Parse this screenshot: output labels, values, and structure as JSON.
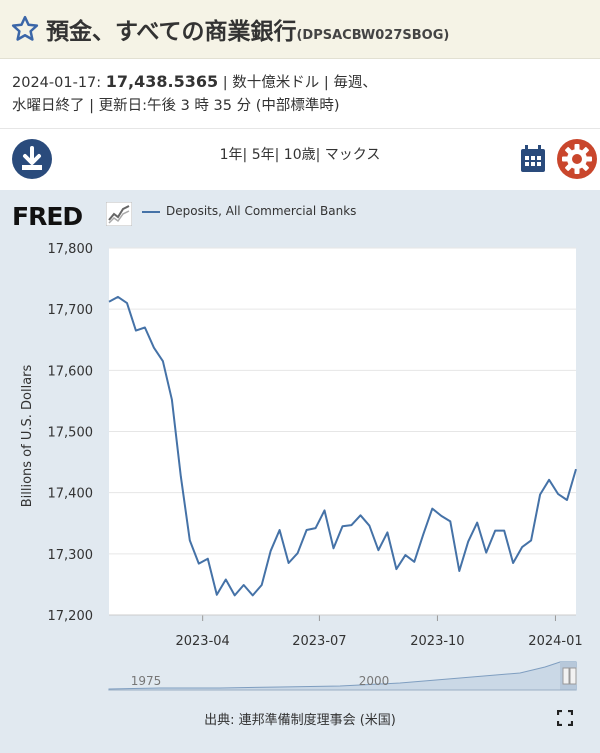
{
  "header": {
    "title": "預金、すべての商業銀行",
    "series_code": "(DPSACBW027SBOG)"
  },
  "info": {
    "date_label": "2024-01-17: ",
    "value": "17,438.5365",
    "line1_rest": " | 数十億米ドル | 毎週、",
    "line2": "水曜日終了 | 更新日:午後 3 時 35 分 (中部標準時)"
  },
  "controls": {
    "ranges": [
      "1年|",
      " 5年|",
      " 10歳|",
      " マックス"
    ]
  },
  "logo": "FRED",
  "legend": {
    "label": "Deposits, All Commercial Banks"
  },
  "source": "出典: 連邦準備制度理事会 (米国)",
  "navigator": {
    "labels": [
      "1975",
      "2000"
    ]
  },
  "colors": {
    "line": "#4572a7",
    "header_bg": "#f5f3e6",
    "chart_bg": "#e1e9f0",
    "gear": "#c9462c",
    "download": "#2a4b7c"
  },
  "chart_data": {
    "type": "line",
    "xlabel": "",
    "ylabel": "Billions of U.S. Dollars",
    "ylim": [
      17200,
      17800
    ],
    "yticks": [
      "17,800",
      "17,700",
      "17,600",
      "17,500",
      "17,400",
      "17,300",
      "17,200"
    ],
    "yticks_values": [
      17800,
      17700,
      17600,
      17500,
      17400,
      17300,
      17200
    ],
    "xticks": [
      {
        "date": "2023-04-01",
        "label": "2023-04"
      },
      {
        "date": "2023-07-01",
        "label": "2023-07"
      },
      {
        "date": "2023-10-01",
        "label": "2023-10"
      },
      {
        "date": "2024-01-01",
        "label": "2024-01"
      }
    ],
    "xlim": [
      "2023-01-18",
      "2024-01-17"
    ],
    "grid": true,
    "legend_position": "top-left",
    "series": [
      {
        "name": "Deposits, All Commercial Banks",
        "x": [
          "2023-01-18",
          "2023-01-25",
          "2023-02-01",
          "2023-02-08",
          "2023-02-15",
          "2023-02-22",
          "2023-03-01",
          "2023-03-08",
          "2023-03-15",
          "2023-03-22",
          "2023-03-29",
          "2023-04-05",
          "2023-04-12",
          "2023-04-19",
          "2023-04-26",
          "2023-05-03",
          "2023-05-10",
          "2023-05-17",
          "2023-05-24",
          "2023-05-31",
          "2023-06-07",
          "2023-06-14",
          "2023-06-21",
          "2023-06-28",
          "2023-07-05",
          "2023-07-12",
          "2023-07-19",
          "2023-07-26",
          "2023-08-02",
          "2023-08-09",
          "2023-08-16",
          "2023-08-23",
          "2023-08-30",
          "2023-09-06",
          "2023-09-13",
          "2023-09-20",
          "2023-09-27",
          "2023-10-04",
          "2023-10-11",
          "2023-10-18",
          "2023-10-25",
          "2023-11-01",
          "2023-11-08",
          "2023-11-15",
          "2023-11-22",
          "2023-11-29",
          "2023-12-06",
          "2023-12-13",
          "2023-12-20",
          "2023-12-27",
          "2024-01-03",
          "2024-01-10",
          "2024-01-17"
        ],
        "y": [
          17712,
          17720,
          17710,
          17665,
          17670,
          17637,
          17615,
          17552,
          17427,
          17322,
          17284,
          17292,
          17233,
          17258,
          17232,
          17249,
          17232,
          17249,
          17305,
          17339,
          17285,
          17301,
          17339,
          17342,
          17371,
          17309,
          17345,
          17347,
          17363,
          17346,
          17306,
          17335,
          17275,
          17298,
          17287,
          17332,
          17374,
          17362,
          17353,
          17272,
          17320,
          17351,
          17302,
          17338,
          17338,
          17285,
          17311,
          17322,
          17397,
          17421,
          17398,
          17388,
          17438.5365
        ]
      }
    ]
  }
}
